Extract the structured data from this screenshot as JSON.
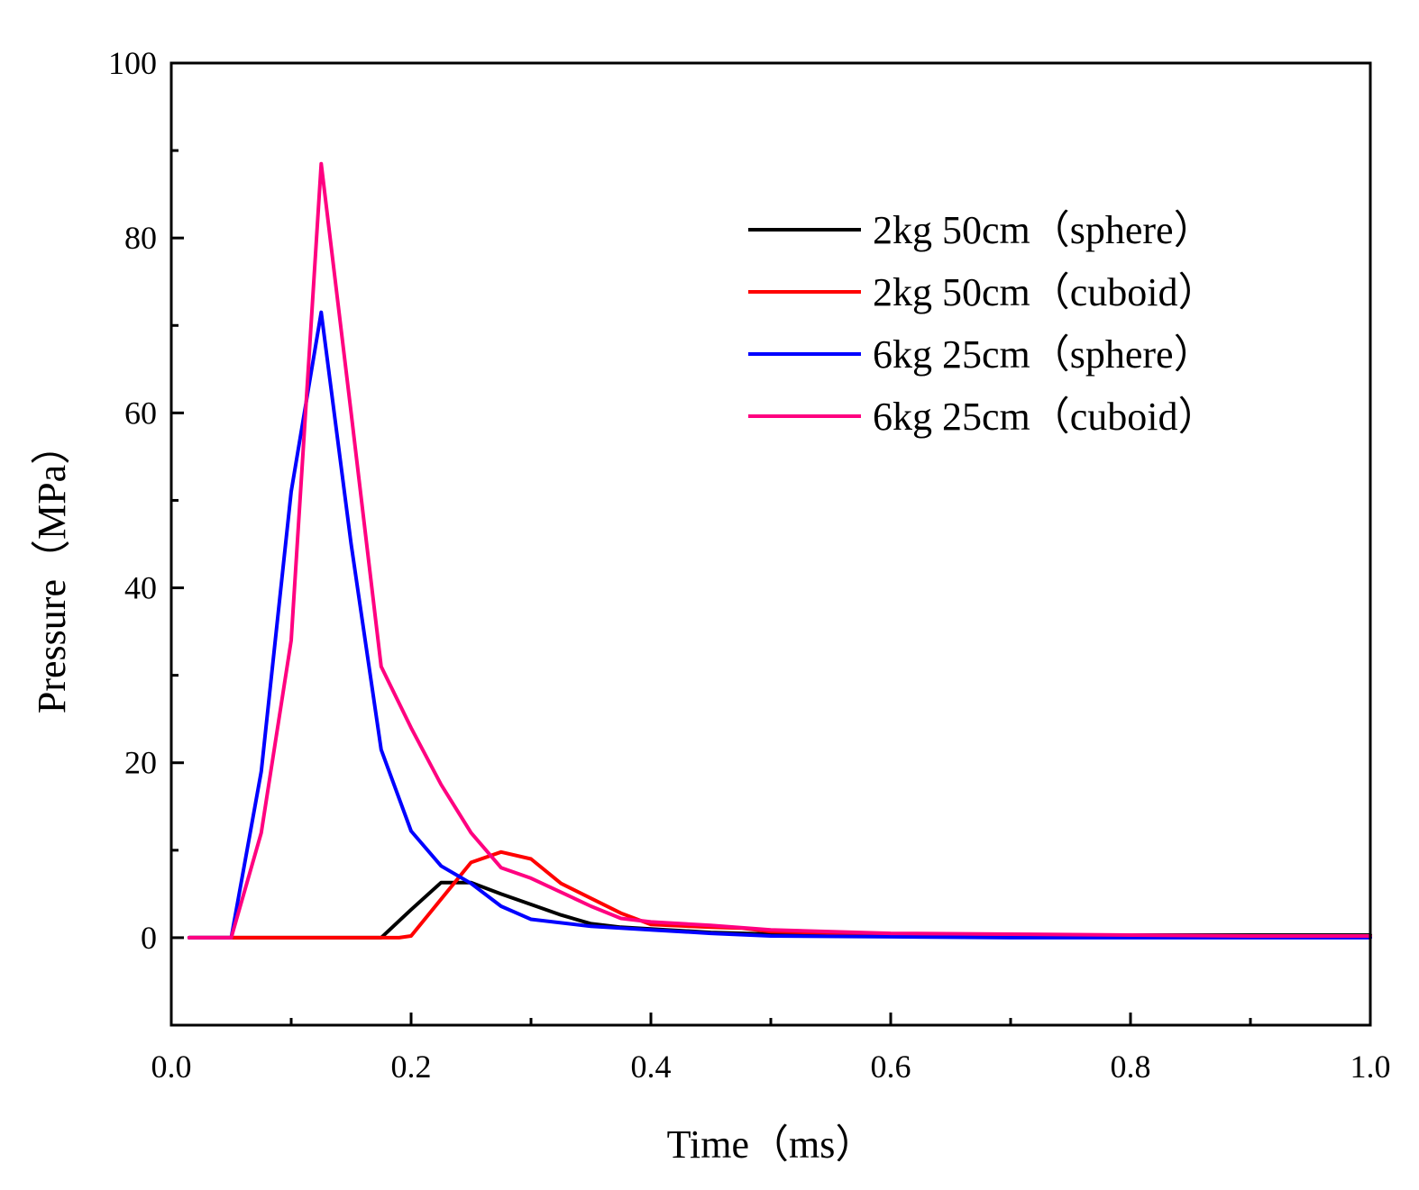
{
  "chart_data": {
    "type": "line",
    "xlabel": "Time（ms）",
    "ylabel": "Pressure（MPa）",
    "xlim": [
      0.0,
      1.0
    ],
    "ylim": [
      -10,
      100
    ],
    "xticks": [
      0.0,
      0.2,
      0.4,
      0.6,
      0.8,
      1.0
    ],
    "xtick_labels": [
      "0.0",
      "0.2",
      "0.4",
      "0.6",
      "0.8",
      "1.0"
    ],
    "yticks": [
      0,
      20,
      40,
      60,
      80,
      100
    ],
    "ytick_labels": [
      "0",
      "20",
      "40",
      "60",
      "80",
      "100"
    ],
    "grid": false,
    "legend_position": "top-right",
    "series": [
      {
        "name": "2kg 50cm（sphere）",
        "color": "#000000",
        "x": [
          0.015,
          0.175,
          0.2,
          0.225,
          0.25,
          0.275,
          0.3,
          0.325,
          0.35,
          0.375,
          0.4,
          0.45,
          0.5,
          0.6,
          0.7,
          0.8,
          0.9,
          1.0
        ],
        "y": [
          0,
          0,
          3.2,
          6.3,
          6.3,
          5.0,
          3.8,
          2.6,
          1.6,
          1.2,
          1.0,
          0.6,
          0.4,
          0.3,
          0.3,
          0.3,
          0.3,
          0.3
        ]
      },
      {
        "name": "2kg 50cm（cuboid）",
        "color": "#ff0000",
        "x": [
          0.015,
          0.19,
          0.2,
          0.25,
          0.275,
          0.3,
          0.325,
          0.35,
          0.375,
          0.4,
          0.45,
          0.475,
          0.5,
          0.6,
          0.7,
          0.8,
          0.9,
          1.0
        ],
        "y": [
          0,
          0,
          0.2,
          8.6,
          9.8,
          9.0,
          6.2,
          4.5,
          2.8,
          1.5,
          1.2,
          1.1,
          0.7,
          0.4,
          0.3,
          0.2,
          0.2,
          0.2
        ]
      },
      {
        "name": "6kg 25cm（sphere）",
        "color": "#0000ff",
        "x": [
          0.015,
          0.05,
          0.075,
          0.1,
          0.125,
          0.15,
          0.175,
          0.2,
          0.225,
          0.25,
          0.275,
          0.3,
          0.35,
          0.4,
          0.45,
          0.5,
          0.6,
          0.7,
          0.8,
          0.9,
          1.0
        ],
        "y": [
          0,
          0,
          19.0,
          51.0,
          71.5,
          45.0,
          21.5,
          12.2,
          8.2,
          6.2,
          3.6,
          2.1,
          1.3,
          0.9,
          0.5,
          0.2,
          0.1,
          0.0,
          0.0,
          0.0,
          0.0
        ]
      },
      {
        "name": "6kg 25cm（cuboid）",
        "color": "#ff0080",
        "x": [
          0.015,
          0.05,
          0.075,
          0.1,
          0.125,
          0.15,
          0.175,
          0.2,
          0.225,
          0.25,
          0.275,
          0.3,
          0.325,
          0.35,
          0.375,
          0.4,
          0.45,
          0.5,
          0.6,
          0.7,
          0.8,
          0.9,
          1.0
        ],
        "y": [
          0,
          0,
          12.0,
          34.0,
          88.5,
          60.0,
          31.0,
          24.0,
          17.5,
          12.0,
          8.0,
          6.8,
          5.2,
          3.6,
          2.2,
          1.8,
          1.4,
          0.9,
          0.5,
          0.4,
          0.3,
          0.2,
          0.2
        ]
      }
    ]
  }
}
